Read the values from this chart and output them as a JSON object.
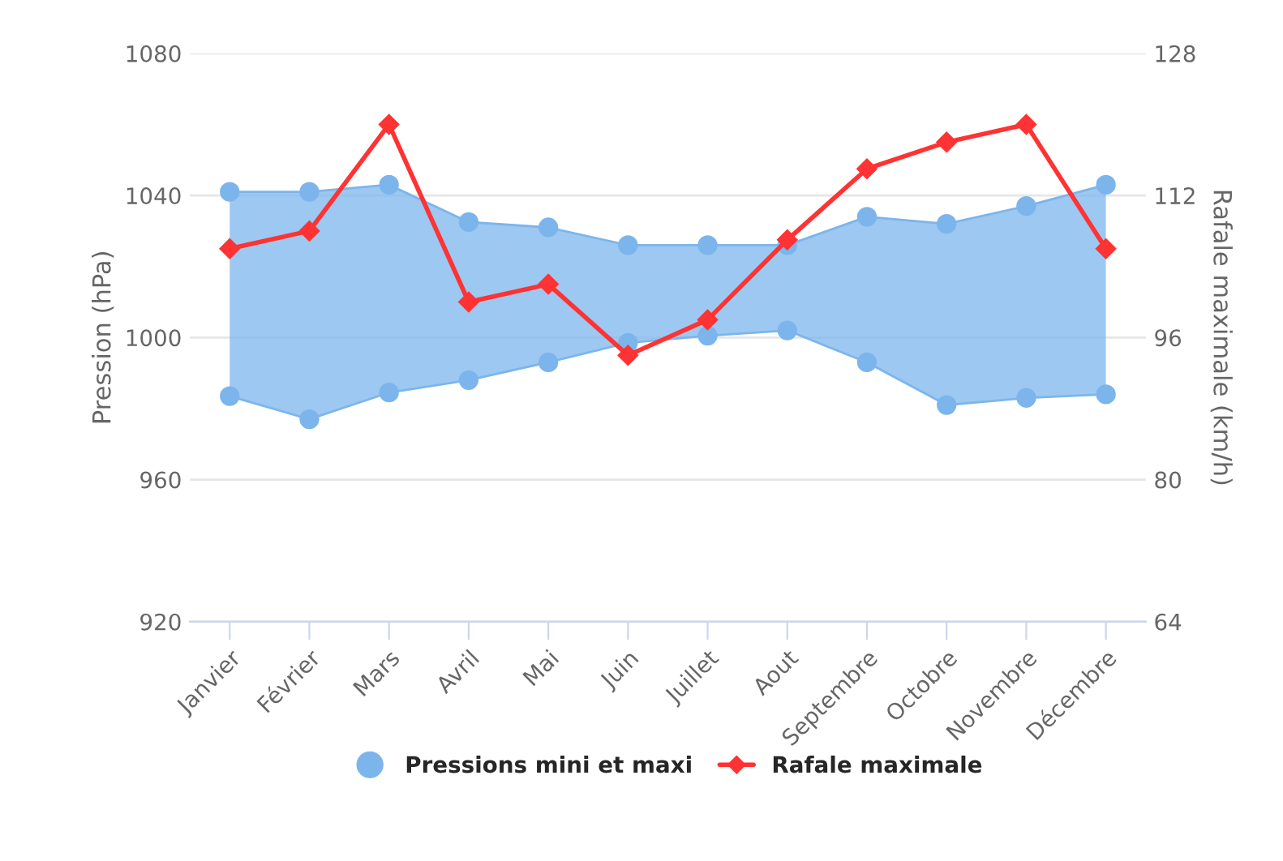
{
  "chart_data": {
    "type": "line",
    "categories": [
      "Janvier",
      "Février",
      "Mars",
      "Avril",
      "Mai",
      "Juin",
      "Juillet",
      "Aout",
      "Septembre",
      "Octobre",
      "Novembre",
      "Décembre"
    ],
    "series": [
      {
        "name": "Pressions mini et maxi",
        "color": "#7cb5ec",
        "marker": "circle",
        "values": [
          1041,
          1041,
          1043,
          1032.5,
          1031,
          1026,
          1026,
          1026,
          1034,
          1032,
          1037,
          1043
        ],
        "lower": [
          983.5,
          977,
          984.5,
          988,
          993,
          998.5,
          1000.5,
          1002,
          993,
          981,
          983,
          984
        ],
        "upper": [
          1041,
          1041,
          1043,
          1032.5,
          1031,
          1026,
          1026,
          1026,
          1034,
          1032,
          1037,
          1043
        ]
      },
      {
        "color": "#7cb5ec",
        "marker": "circle",
        "values": [
          983.5,
          977,
          984.5,
          988,
          993,
          998.5,
          1000.5,
          1002,
          993,
          981,
          983,
          984
        ]
      },
      {
        "name": "Rafale maximale",
        "axis": "y2",
        "color": "#ff3333",
        "marker": "diamond",
        "values": [
          106,
          108,
          120,
          100,
          102,
          94,
          98,
          107,
          115,
          118,
          120,
          106
        ]
      }
    ],
    "ylabel": "Pression (hPa)",
    "y2label": "Rafale maximale (km/h)",
    "ylim": [
      920,
      1080
    ],
    "yticks": [
      920,
      960,
      1000,
      1040,
      1080
    ],
    "y2lim": [
      64,
      128
    ],
    "y2ticks": [
      64,
      80,
      96,
      112,
      128
    ],
    "grid": "y",
    "legend": "bottom"
  }
}
